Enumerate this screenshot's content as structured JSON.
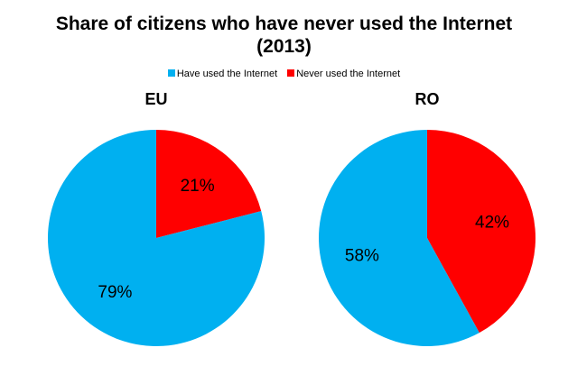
{
  "chart_data": {
    "type": "pie",
    "title": "Share of citizens who have never used the Internet",
    "subtitle": "(2013)",
    "legend": {
      "placement": "top-center",
      "entries": [
        {
          "label": "Have used the Internet",
          "color": "#00b0f0"
        },
        {
          "label": "Never used the Internet",
          "color": "#ff0000"
        }
      ]
    },
    "pies": [
      {
        "title": "EU",
        "slices": [
          {
            "label": "Never used the Internet",
            "value": 21,
            "display": "21%",
            "color": "#ff0000"
          },
          {
            "label": "Have used the Internet",
            "value": 79,
            "display": "79%",
            "color": "#00b0f0"
          }
        ]
      },
      {
        "title": "RO",
        "slices": [
          {
            "label": "Never used the Internet",
            "value": 42,
            "display": "42%",
            "color": "#ff0000"
          },
          {
            "label": "Have used the Internet",
            "value": 58,
            "display": "58%",
            "color": "#00b0f0"
          }
        ]
      }
    ]
  }
}
